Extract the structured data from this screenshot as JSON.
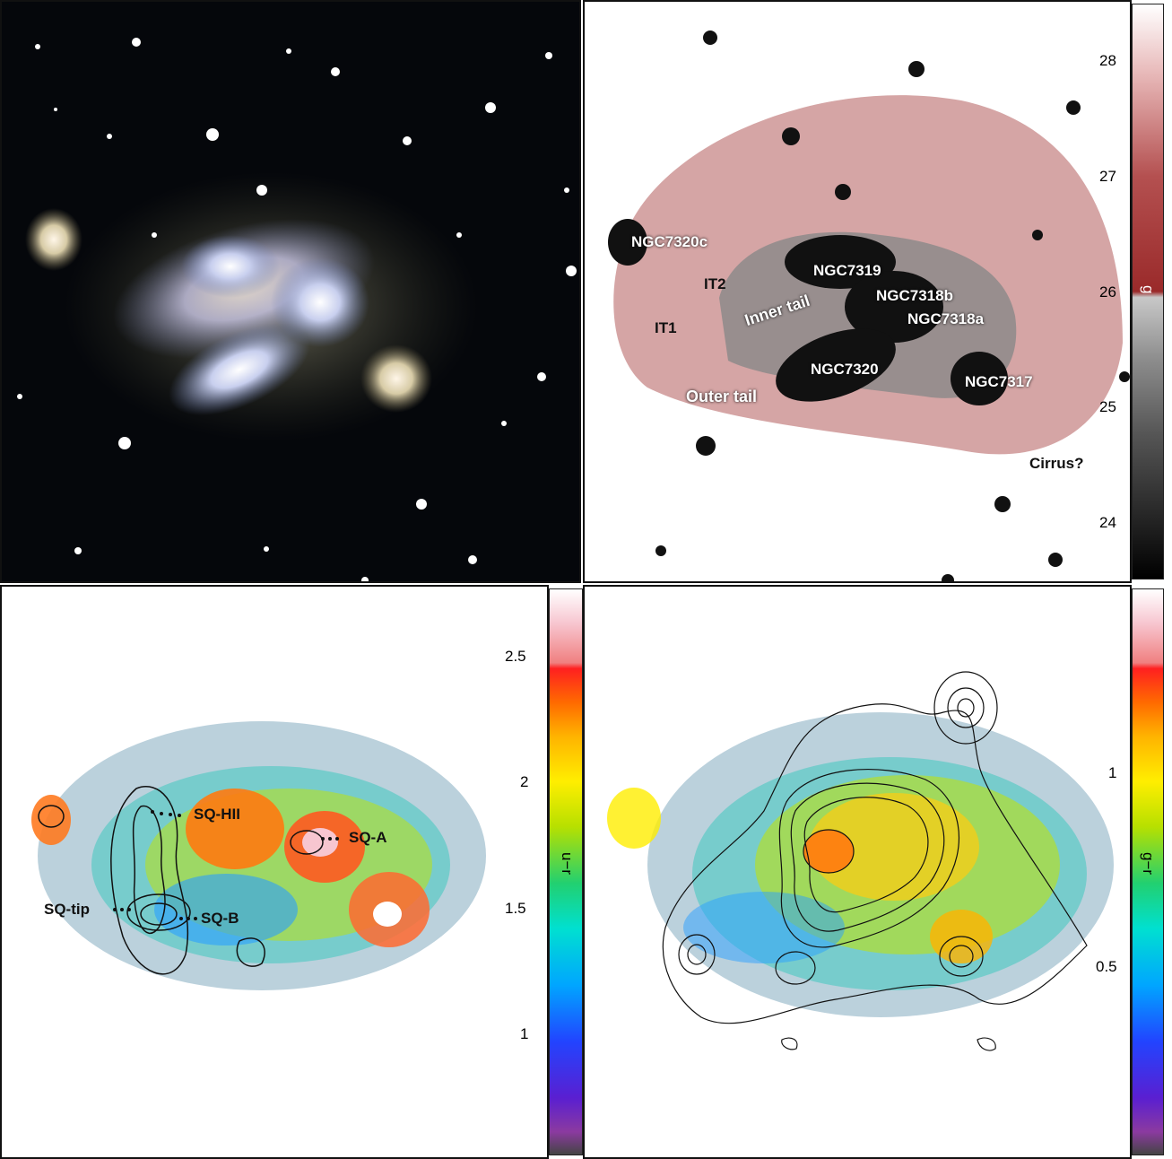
{
  "panels": {
    "g_band": {
      "labels": [
        "NGC7320c",
        "IT2",
        "NGC7319",
        "NGC7318b",
        "NGC7318a",
        "IT1",
        "Inner tail",
        "NGC7320",
        "NGC7317",
        "Outer tail",
        "Cirrus?"
      ],
      "colorbar": {
        "name": "g",
        "ticks": [
          "28",
          "27",
          "26",
          "25",
          "24"
        ]
      }
    },
    "u_r": {
      "labels": [
        "SQ-HII",
        "SQ-A",
        "SQ-tip",
        "SQ-B"
      ],
      "colorbar": {
        "name": "u−r",
        "ticks": [
          "2.5",
          "2",
          "1.5",
          "1"
        ]
      }
    },
    "g_r": {
      "colorbar": {
        "name": "g−r",
        "ticks": [
          "1",
          "0.5"
        ]
      }
    }
  }
}
